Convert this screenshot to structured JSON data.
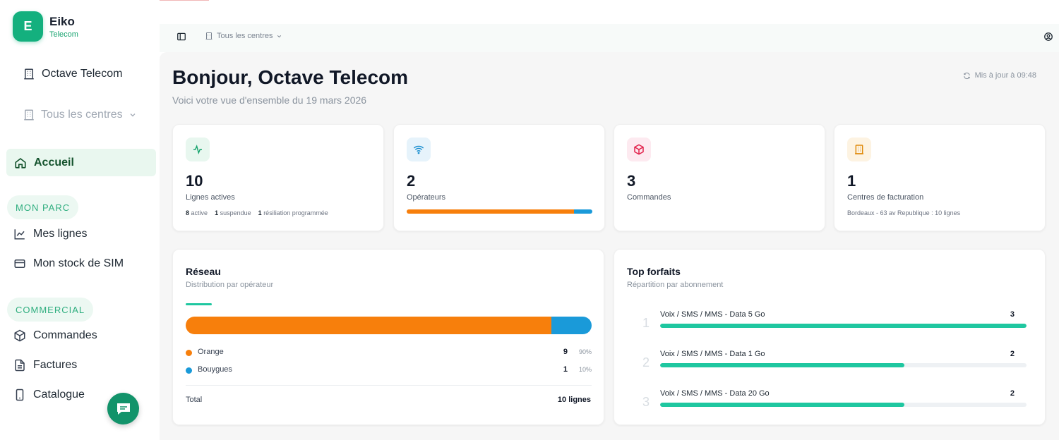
{
  "brand": {
    "logo_letter": "E",
    "name": "Eiko",
    "subtitle": "Telecom"
  },
  "sidebar": {
    "company": "Octave Telecom",
    "centres_selector": "Tous les centres",
    "active_item": "Accueil",
    "section_parc": "MON PARC",
    "parc_items": [
      "Mes lignes",
      "Mon stock de SIM"
    ],
    "section_commercial": "COMMERCIAL",
    "commercial_items": [
      "Commandes",
      "Factures",
      "Catalogue"
    ]
  },
  "topbar": {
    "centres_selector": "Tous les centres"
  },
  "header": {
    "title": "Bonjour, Octave Telecom",
    "subtitle": "Voici votre vue d'ensemble du 19 mars 2026",
    "updated": "Mis à jour à 09:48"
  },
  "stats": {
    "lines": {
      "value": "10",
      "label": "Lignes actives",
      "active_count": "8",
      "active_label": "active",
      "suspended_count": "1",
      "suspended_label": "suspendue",
      "termination_count": "1",
      "termination_label": "résiliation programmée"
    },
    "operators": {
      "value": "2",
      "label": "Opérateurs",
      "orange_share": 0.9,
      "bouygues_share": 0.1
    },
    "orders": {
      "value": "3",
      "label": "Commandes"
    },
    "billing": {
      "value": "1",
      "label": "Centres de facturation",
      "detail": "Bordeaux - 63 av Republique : 10 lignes"
    }
  },
  "network": {
    "title": "Réseau",
    "subtitle": "Distribution par opérateur",
    "operators": [
      {
        "name": "Orange",
        "count": "9",
        "pct": "90%",
        "share": 0.9,
        "color": "#f77f0c"
      },
      {
        "name": "Bouygues",
        "count": "1",
        "pct": "10%",
        "share": 0.1,
        "color": "#1a9ad9"
      }
    ],
    "total_label": "Total",
    "total_value": "10 lignes"
  },
  "top_plans": {
    "title": "Top forfaits",
    "subtitle": "Répartition par abonnement",
    "items": [
      {
        "rank": "1",
        "name": "Voix / SMS / MMS - Data 5 Go",
        "count": "3",
        "share": 1.0
      },
      {
        "rank": "2",
        "name": "Voix / SMS / MMS - Data 1 Go",
        "count": "2",
        "share": 0.667
      },
      {
        "rank": "3",
        "name": "Voix / SMS / MMS - Data 20 Go",
        "count": "2",
        "share": 0.667
      }
    ]
  },
  "colors": {
    "brand": "#14b07e",
    "orange": "#f77f0c",
    "bouygues": "#1a9ad9",
    "accent": "#1fc7a0"
  }
}
